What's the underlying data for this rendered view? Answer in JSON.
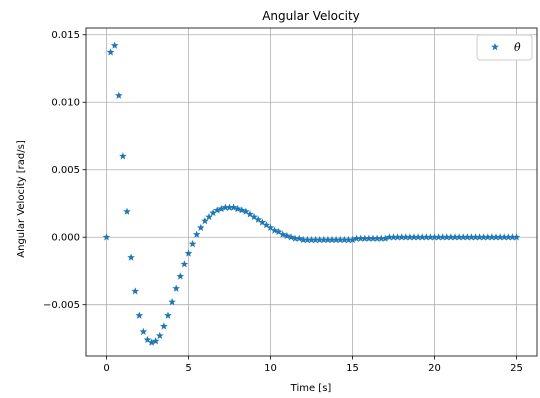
{
  "chart_data": {
    "type": "scatter",
    "title": "Angular Velocity",
    "xlabel": "Time [s]",
    "ylabel": "Angular Velocity [rad/s]",
    "xlim": [
      -1.25,
      26.25
    ],
    "ylim": [
      -0.0088,
      0.0155
    ],
    "x_ticks": [
      0,
      5,
      10,
      15,
      20,
      25
    ],
    "x_tick_labels": [
      "0",
      "5",
      "10",
      "15",
      "20",
      "25"
    ],
    "y_ticks": [
      -0.005,
      0.0,
      0.005,
      0.01,
      0.015
    ],
    "y_tick_labels": [
      "−0.005",
      "0.000",
      "0.005",
      "0.010",
      "0.015"
    ],
    "grid": true,
    "legend_position": "top-right",
    "marker": "star",
    "color": "#1f77b4",
    "series": [
      {
        "name": "θ̇",
        "x": [
          0.0,
          0.25,
          0.5,
          0.75,
          1.0,
          1.25,
          1.5,
          1.75,
          2.0,
          2.25,
          2.5,
          2.75,
          3.0,
          3.25,
          3.5,
          3.75,
          4.0,
          4.25,
          4.5,
          4.75,
          5.0,
          5.25,
          5.5,
          5.75,
          6.0,
          6.25,
          6.5,
          6.75,
          7.0,
          7.25,
          7.5,
          7.75,
          8.0,
          8.25,
          8.5,
          8.75,
          9.0,
          9.25,
          9.5,
          9.75,
          10.0,
          10.25,
          10.5,
          10.75,
          11.0,
          11.25,
          11.5,
          11.75,
          12.0,
          12.25,
          12.5,
          12.75,
          13.0,
          13.25,
          13.5,
          13.75,
          14.0,
          14.25,
          14.5,
          14.75,
          15.0,
          15.25,
          15.5,
          15.75,
          16.0,
          16.25,
          16.5,
          16.75,
          17.0,
          17.25,
          17.5,
          17.75,
          18.0,
          18.25,
          18.5,
          18.75,
          19.0,
          19.25,
          19.5,
          19.75,
          20.0,
          20.25,
          20.5,
          20.75,
          21.0,
          21.25,
          21.5,
          21.75,
          22.0,
          22.25,
          22.5,
          22.75,
          23.0,
          23.25,
          23.5,
          23.75,
          24.0,
          24.25,
          24.5,
          24.75,
          25.0
        ],
        "y": [
          0.0,
          0.0137,
          0.0142,
          0.0105,
          0.006,
          0.0019,
          -0.0015,
          -0.004,
          -0.0058,
          -0.007,
          -0.0076,
          -0.0078,
          -0.0077,
          -0.0073,
          -0.0066,
          -0.0058,
          -0.0048,
          -0.0038,
          -0.0029,
          -0.002,
          -0.0012,
          -0.0005,
          0.0002,
          0.0007,
          0.0012,
          0.0015,
          0.0018,
          0.002,
          0.0021,
          0.0022,
          0.0022,
          0.0022,
          0.0021,
          0.002,
          0.0019,
          0.0017,
          0.0015,
          0.0013,
          0.0011,
          0.0009,
          0.0007,
          0.0005,
          0.0004,
          0.0002,
          0.0001,
          0.0,
          -0.0001,
          -0.0001,
          -0.0002,
          -0.0002,
          -0.0002,
          -0.0002,
          -0.0002,
          -0.0002,
          -0.0002,
          -0.0002,
          -0.0002,
          -0.0002,
          -0.0002,
          -0.0002,
          -0.0002,
          -0.0001,
          -0.0001,
          -0.0001,
          -0.0001,
          -0.0001,
          -0.0001,
          -0.0001,
          -0.0001,
          0.0,
          0.0,
          0.0,
          0.0,
          0.0,
          0.0,
          0.0,
          0.0,
          0.0,
          0.0,
          0.0,
          0.0,
          0.0,
          0.0,
          0.0,
          0.0,
          0.0,
          0.0,
          0.0,
          0.0,
          0.0,
          0.0,
          0.0,
          0.0,
          0.0,
          0.0,
          0.0,
          0.0,
          0.0,
          0.0,
          0.0,
          0.0
        ]
      }
    ]
  }
}
